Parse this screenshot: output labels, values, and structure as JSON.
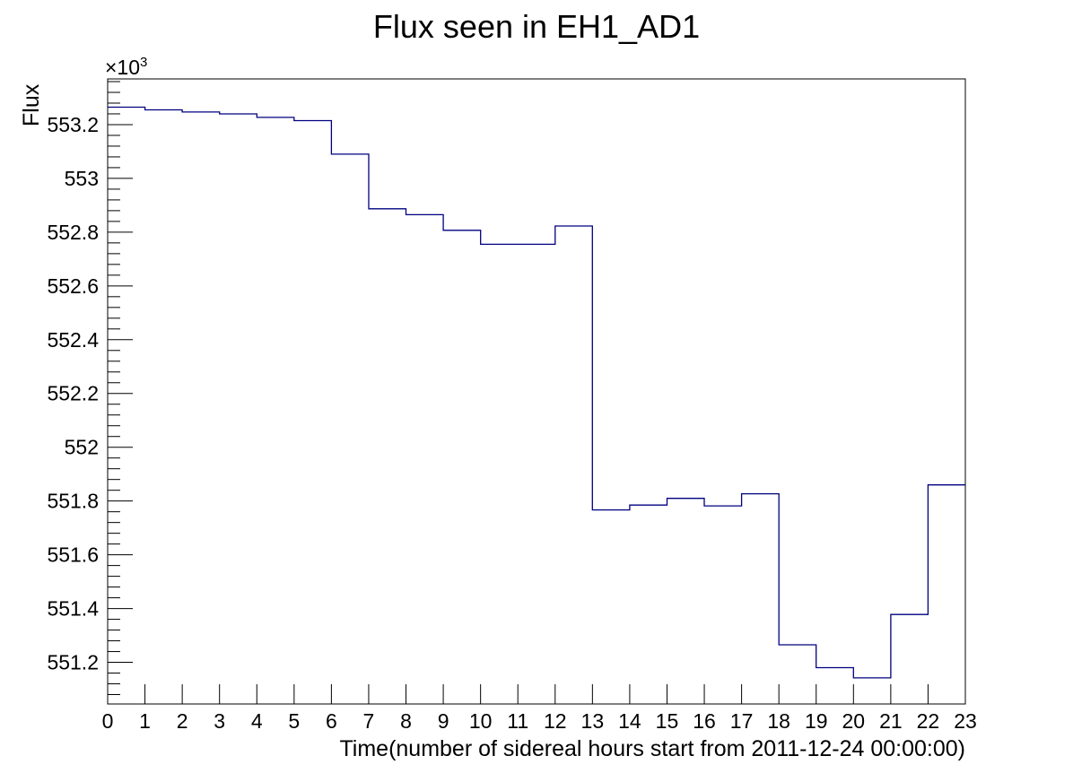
{
  "chart_data": {
    "type": "line",
    "step": true,
    "title": "Flux seen in EH1_AD1",
    "xlabel": "Time(number of sidereal hours start from 2011-12-24 00:00:00)",
    "ylabel": "Flux",
    "y_exponent_label": "×10",
    "y_exponent_power": "3",
    "xlim": [
      0,
      23
    ],
    "ylim": [
      551.045,
      553.37
    ],
    "x_ticks": [
      "0",
      "1",
      "2",
      "3",
      "4",
      "5",
      "6",
      "7",
      "8",
      "9",
      "10",
      "11",
      "12",
      "13",
      "14",
      "15",
      "16",
      "17",
      "18",
      "19",
      "20",
      "21",
      "22",
      "23"
    ],
    "y_ticks": [
      {
        "value": 551.2,
        "label": "551.2"
      },
      {
        "value": 551.4,
        "label": "551.4"
      },
      {
        "value": 551.6,
        "label": "551.6"
      },
      {
        "value": 551.8,
        "label": "551.8"
      },
      {
        "value": 552.0,
        "label": "552"
      },
      {
        "value": 552.2,
        "label": "552.2"
      },
      {
        "value": 552.4,
        "label": "552.4"
      },
      {
        "value": 552.6,
        "label": "552.6"
      },
      {
        "value": 552.8,
        "label": "552.8"
      },
      {
        "value": 553.0,
        "label": "553"
      },
      {
        "value": 553.2,
        "label": "553.2"
      }
    ],
    "bin_edges": [
      0,
      1,
      2,
      3,
      4,
      5,
      6,
      7,
      8,
      9,
      10,
      11,
      12,
      13,
      14,
      15,
      16,
      17,
      18,
      19,
      20,
      21,
      22,
      23
    ],
    "values": [
      553.265,
      553.255,
      553.247,
      553.24,
      553.227,
      553.215,
      553.09,
      552.887,
      552.865,
      552.807,
      552.755,
      552.755,
      552.823,
      551.767,
      551.785,
      551.81,
      551.782,
      551.827,
      551.265,
      551.18,
      551.142,
      551.378,
      551.86
    ],
    "line_color": "#000080",
    "grid": false
  }
}
